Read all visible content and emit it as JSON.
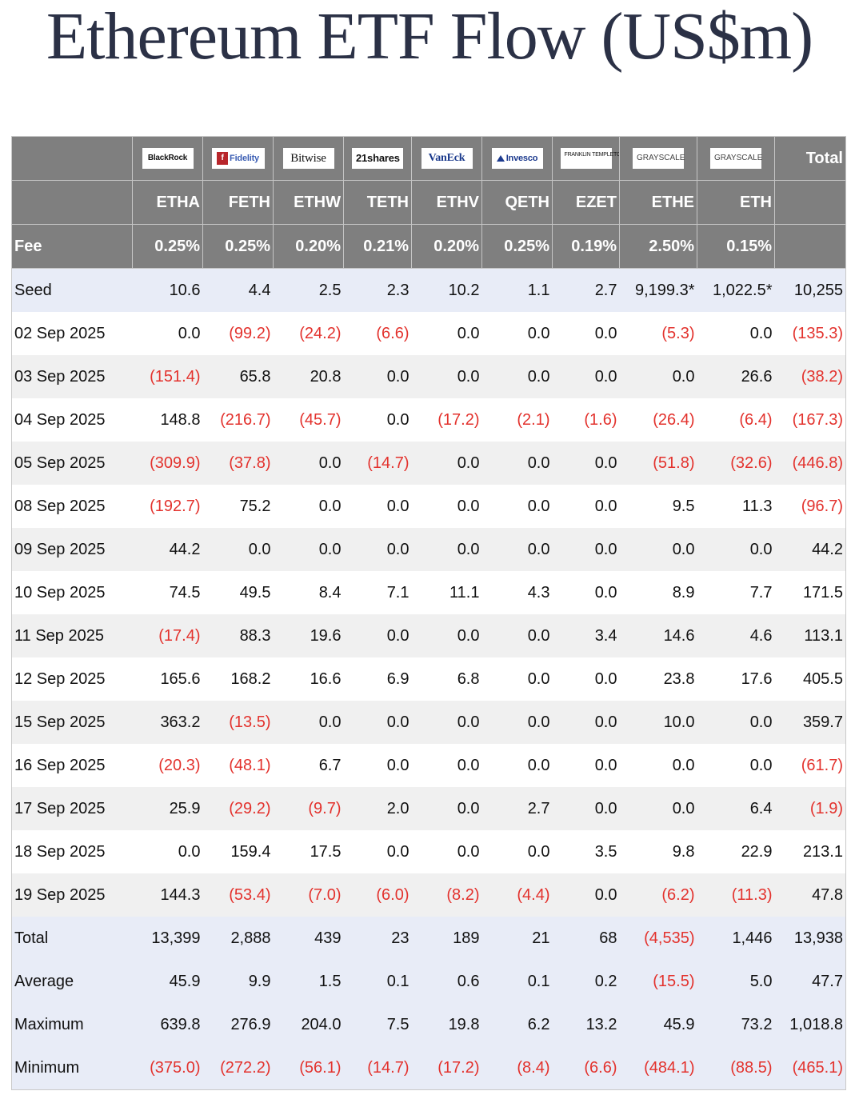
{
  "title": "Ethereum ETF Flow (US$m)",
  "colors": {
    "header_bg": "#7f7f7f",
    "negative": "#e3322d",
    "summary_bg": "#e8ecf7",
    "stripe_bg": "#f0f0f0",
    "title": "#2b3146"
  },
  "issuers": [
    {
      "name": "BlackRock",
      "ticker": "ETHA",
      "fee": "0.25%"
    },
    {
      "name": "Fidelity",
      "ticker": "FETH",
      "fee": "0.25%"
    },
    {
      "name": "Bitwise",
      "ticker": "ETHW",
      "fee": "0.20%"
    },
    {
      "name": "21shares",
      "ticker": "TETH",
      "fee": "0.21%"
    },
    {
      "name": "VanEck",
      "ticker": "ETHV",
      "fee": "0.20%"
    },
    {
      "name": "Invesco",
      "ticker": "QETH",
      "fee": "0.25%"
    },
    {
      "name": "FRANKLIN TEMPLETON",
      "ticker": "EZET",
      "fee": "0.19%"
    },
    {
      "name": "GRAYSCALE",
      "ticker": "ETHE",
      "fee": "2.50%"
    },
    {
      "name": "GRAYSCALE",
      "ticker": "ETH",
      "fee": "0.15%"
    }
  ],
  "total_header": "Total",
  "fee_label": "Fee",
  "rows": [
    {
      "label": "Seed",
      "values": [
        "10.6",
        "4.4",
        "2.5",
        "2.3",
        "10.2",
        "1.1",
        "2.7",
        "9,199.3*",
        "1,022.5*",
        "10,255"
      ]
    },
    {
      "label": "02 Sep 2025",
      "values": [
        "0.0",
        "(99.2)",
        "(24.2)",
        "(6.6)",
        "0.0",
        "0.0",
        "0.0",
        "(5.3)",
        "0.0",
        "(135.3)"
      ]
    },
    {
      "label": "03 Sep 2025",
      "values": [
        "(151.4)",
        "65.8",
        "20.8",
        "0.0",
        "0.0",
        "0.0",
        "0.0",
        "0.0",
        "26.6",
        "(38.2)"
      ]
    },
    {
      "label": "04 Sep 2025",
      "values": [
        "148.8",
        "(216.7)",
        "(45.7)",
        "0.0",
        "(17.2)",
        "(2.1)",
        "(1.6)",
        "(26.4)",
        "(6.4)",
        "(167.3)"
      ]
    },
    {
      "label": "05 Sep 2025",
      "values": [
        "(309.9)",
        "(37.8)",
        "0.0",
        "(14.7)",
        "0.0",
        "0.0",
        "0.0",
        "(51.8)",
        "(32.6)",
        "(446.8)"
      ]
    },
    {
      "label": "08 Sep 2025",
      "values": [
        "(192.7)",
        "75.2",
        "0.0",
        "0.0",
        "0.0",
        "0.0",
        "0.0",
        "9.5",
        "11.3",
        "(96.7)"
      ]
    },
    {
      "label": "09 Sep 2025",
      "values": [
        "44.2",
        "0.0",
        "0.0",
        "0.0",
        "0.0",
        "0.0",
        "0.0",
        "0.0",
        "0.0",
        "44.2"
      ]
    },
    {
      "label": "10 Sep 2025",
      "values": [
        "74.5",
        "49.5",
        "8.4",
        "7.1",
        "11.1",
        "4.3",
        "0.0",
        "8.9",
        "7.7",
        "171.5"
      ]
    },
    {
      "label": "11 Sep 2025",
      "values": [
        "(17.4)",
        "88.3",
        "19.6",
        "0.0",
        "0.0",
        "0.0",
        "3.4",
        "14.6",
        "4.6",
        "113.1"
      ]
    },
    {
      "label": "12 Sep 2025",
      "values": [
        "165.6",
        "168.2",
        "16.6",
        "6.9",
        "6.8",
        "0.0",
        "0.0",
        "23.8",
        "17.6",
        "405.5"
      ]
    },
    {
      "label": "15 Sep 2025",
      "values": [
        "363.2",
        "(13.5)",
        "0.0",
        "0.0",
        "0.0",
        "0.0",
        "0.0",
        "10.0",
        "0.0",
        "359.7"
      ]
    },
    {
      "label": "16 Sep 2025",
      "values": [
        "(20.3)",
        "(48.1)",
        "6.7",
        "0.0",
        "0.0",
        "0.0",
        "0.0",
        "0.0",
        "0.0",
        "(61.7)"
      ]
    },
    {
      "label": "17 Sep 2025",
      "values": [
        "25.9",
        "(29.2)",
        "(9.7)",
        "2.0",
        "0.0",
        "2.7",
        "0.0",
        "0.0",
        "6.4",
        "(1.9)"
      ]
    },
    {
      "label": "18 Sep 2025",
      "values": [
        "0.0",
        "159.4",
        "17.5",
        "0.0",
        "0.0",
        "0.0",
        "3.5",
        "9.8",
        "22.9",
        "213.1"
      ]
    },
    {
      "label": "19 Sep 2025",
      "values": [
        "144.3",
        "(53.4)",
        "(7.0)",
        "(6.0)",
        "(8.2)",
        "(4.4)",
        "0.0",
        "(6.2)",
        "(11.3)",
        "47.8"
      ]
    },
    {
      "label": "Total",
      "values": [
        "13,399",
        "2,888",
        "439",
        "23",
        "189",
        "21",
        "68",
        "(4,535)",
        "1,446",
        "13,938"
      ]
    },
    {
      "label": "Average",
      "values": [
        "45.9",
        "9.9",
        "1.5",
        "0.1",
        "0.6",
        "0.1",
        "0.2",
        "(15.5)",
        "5.0",
        "47.7"
      ]
    },
    {
      "label": "Maximum",
      "values": [
        "639.8",
        "276.9",
        "204.0",
        "7.5",
        "19.8",
        "6.2",
        "13.2",
        "45.9",
        "73.2",
        "1,018.8"
      ]
    },
    {
      "label": "Minimum",
      "values": [
        "(375.0)",
        "(272.2)",
        "(56.1)",
        "(14.7)",
        "(17.2)",
        "(8.4)",
        "(6.6)",
        "(484.1)",
        "(88.5)",
        "(465.1)"
      ]
    }
  ]
}
